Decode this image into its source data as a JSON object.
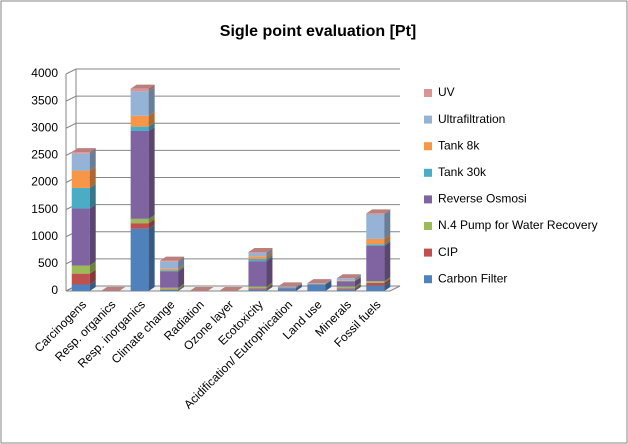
{
  "chart_data": {
    "type": "bar",
    "stacked": true,
    "title": "Sigle point evaluation [Pt]",
    "categories": [
      "Carcinogens",
      "Resp. organics",
      "Resp. inorganics",
      "Climate change",
      "Radiation",
      "Ozone layer",
      "Ecotoxicity",
      "Acidification/ Eutrophication",
      "Land use",
      "Minerals",
      "Fossil fuels"
    ],
    "series": [
      {
        "name": "Carbon Filter",
        "color": "#4f81bd",
        "values": [
          120,
          2,
          1150,
          20,
          1,
          1,
          30,
          50,
          120,
          30,
          100
        ]
      },
      {
        "name": "CIP",
        "color": "#c0504d",
        "values": [
          200,
          0,
          100,
          10,
          0,
          0,
          20,
          5,
          5,
          20,
          50
        ]
      },
      {
        "name": "N.4 Pump for Water Recovery",
        "color": "#9bbb59",
        "values": [
          150,
          0,
          80,
          30,
          0,
          0,
          30,
          5,
          5,
          30,
          30
        ]
      },
      {
        "name": "Reverse Osmosi",
        "color": "#8064a2",
        "values": [
          1050,
          0,
          1620,
          300,
          0,
          0,
          470,
          10,
          5,
          100,
          650
        ]
      },
      {
        "name": "Tank 30k",
        "color": "#4bacc6",
        "values": [
          380,
          0,
          80,
          20,
          0,
          0,
          40,
          2,
          2,
          10,
          30
        ]
      },
      {
        "name": "Tank 8k",
        "color": "#f79646",
        "values": [
          320,
          0,
          200,
          30,
          0,
          0,
          50,
          2,
          2,
          10,
          100
        ]
      },
      {
        "name": "Ultrafiltration",
        "color": "#95b3d7",
        "values": [
          310,
          0,
          450,
          130,
          0,
          0,
          60,
          10,
          5,
          30,
          450
        ]
      },
      {
        "name": "UV",
        "color": "#da9694",
        "values": [
          30,
          0,
          50,
          20,
          0,
          0,
          20,
          2,
          2,
          5,
          20
        ]
      }
    ],
    "ylim": [
      0,
      4000
    ],
    "yticks": [
      0,
      500,
      1000,
      1500,
      2000,
      2500,
      3000,
      3500,
      4000
    ],
    "grid": true,
    "legend": "right"
  }
}
